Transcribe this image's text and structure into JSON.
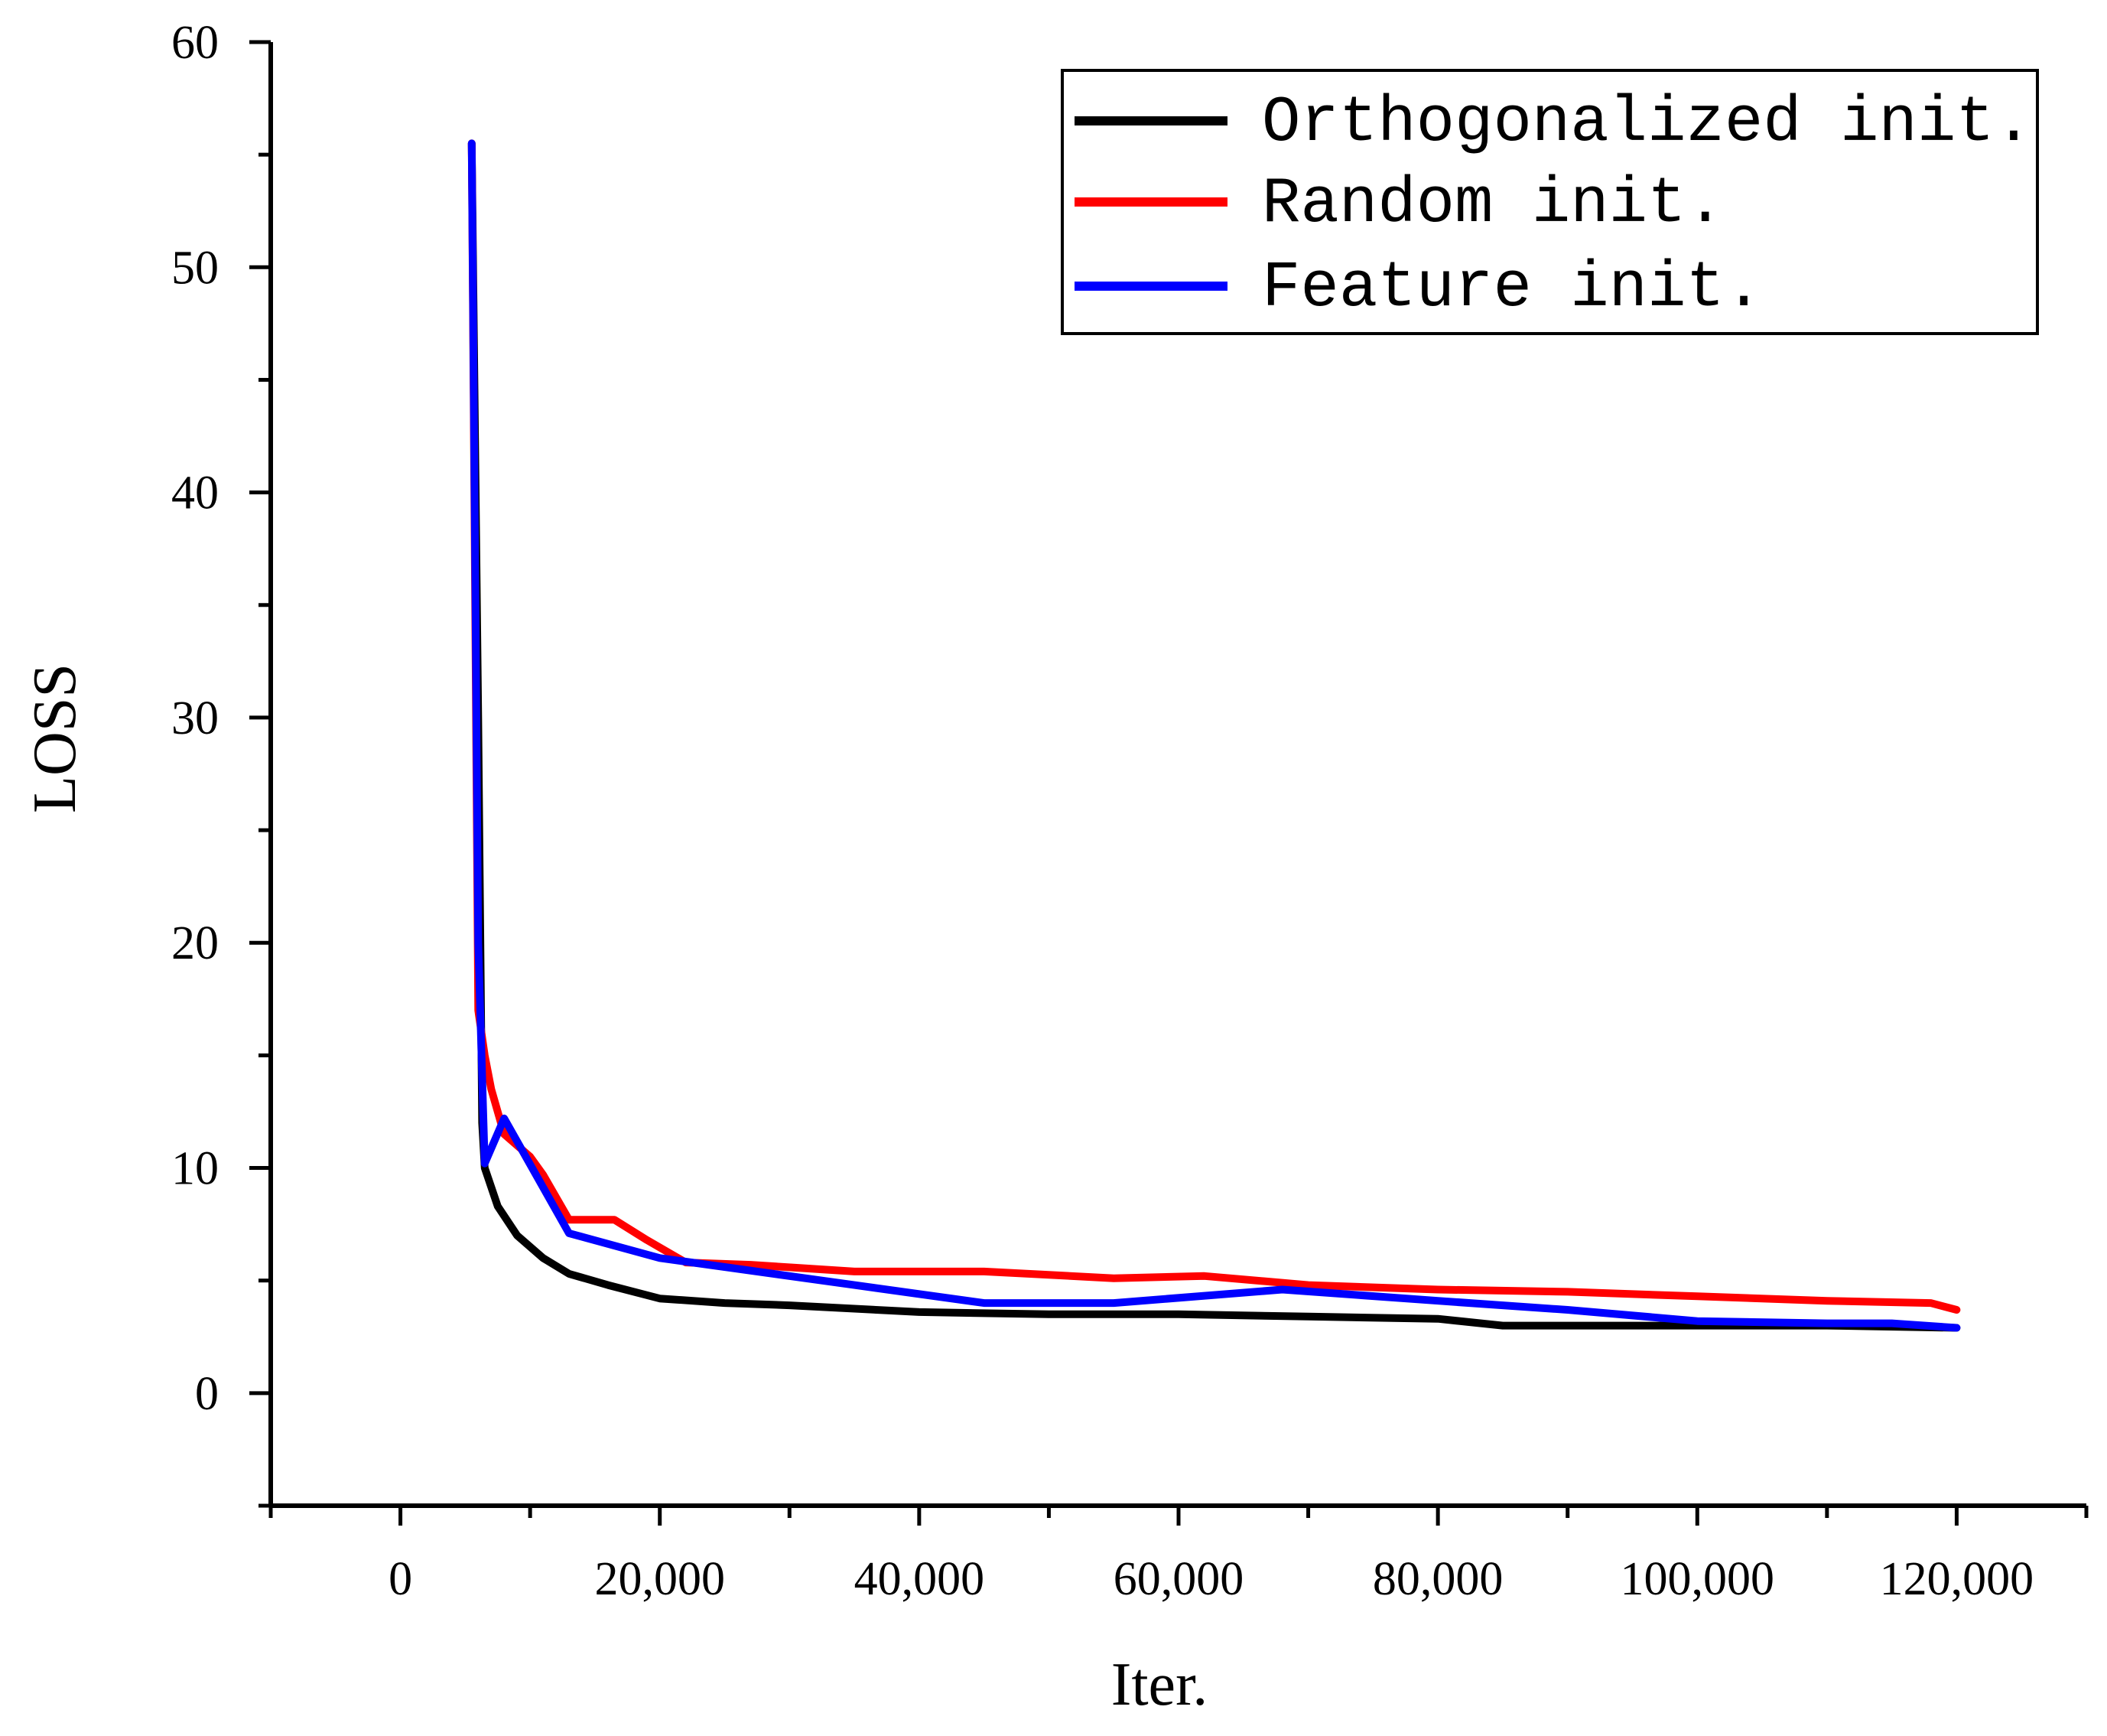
{
  "chart_data": {
    "type": "line",
    "title": "",
    "xlabel": "Iter.",
    "ylabel": "LOSS",
    "xlim": [
      -10000,
      130000
    ],
    "ylim": [
      -5,
      60
    ],
    "xticks": [
      0,
      20000,
      40000,
      60000,
      80000,
      100000,
      120000
    ],
    "xtick_labels": [
      "0",
      "20,000",
      "40,000",
      "60,000",
      "80,000",
      "100,000",
      "120,000"
    ],
    "yticks": [
      0,
      10,
      20,
      30,
      40,
      50,
      60
    ],
    "ytick_labels": [
      "0",
      "10",
      "20",
      "30",
      "40",
      "50",
      "60"
    ],
    "grid": false,
    "legend_position": "top-right",
    "series": [
      {
        "name": "Orthogonalized init.",
        "color": "#000000",
        "points": [
          [
            5500,
            55.5
          ],
          [
            6000,
            30
          ],
          [
            6300,
            12
          ],
          [
            6500,
            10
          ],
          [
            7500,
            8.3
          ],
          [
            9000,
            7
          ],
          [
            11000,
            6
          ],
          [
            13000,
            5.3
          ],
          [
            16000,
            4.8
          ],
          [
            20000,
            4.2
          ],
          [
            25000,
            4
          ],
          [
            30000,
            3.9
          ],
          [
            40000,
            3.6
          ],
          [
            50000,
            3.5
          ],
          [
            60000,
            3.5
          ],
          [
            70000,
            3.4
          ],
          [
            80000,
            3.3
          ],
          [
            85000,
            3
          ],
          [
            90000,
            3
          ],
          [
            100000,
            3
          ],
          [
            110000,
            3
          ],
          [
            120000,
            2.9
          ]
        ]
      },
      {
        "name": "Random init.",
        "color": "#ff0000",
        "points": [
          [
            5500,
            55.5
          ],
          [
            6000,
            17
          ],
          [
            6500,
            15
          ],
          [
            7000,
            13.5
          ],
          [
            8000,
            11.5
          ],
          [
            10000,
            10.5
          ],
          [
            11000,
            9.7
          ],
          [
            13000,
            7.7
          ],
          [
            16500,
            7.7
          ],
          [
            19000,
            6.8
          ],
          [
            22000,
            5.8
          ],
          [
            27000,
            5.7
          ],
          [
            35000,
            5.4
          ],
          [
            45000,
            5.4
          ],
          [
            55000,
            5.1
          ],
          [
            62000,
            5.2
          ],
          [
            70000,
            4.8
          ],
          [
            80000,
            4.6
          ],
          [
            90000,
            4.5
          ],
          [
            100000,
            4.3
          ],
          [
            110000,
            4.1
          ],
          [
            118000,
            4
          ],
          [
            120000,
            3.7
          ]
        ]
      },
      {
        "name": "Feature init.",
        "color": "#0000ff",
        "points": [
          [
            5500,
            55.5
          ],
          [
            6000,
            20
          ],
          [
            6500,
            10.2
          ],
          [
            8000,
            12.2
          ],
          [
            13000,
            7.1
          ],
          [
            20000,
            6
          ],
          [
            25000,
            5.6
          ],
          [
            35000,
            4.8
          ],
          [
            45000,
            4
          ],
          [
            55000,
            4
          ],
          [
            68000,
            4.6
          ],
          [
            80000,
            4.1
          ],
          [
            90000,
            3.7
          ],
          [
            100000,
            3.2
          ],
          [
            110000,
            3.1
          ],
          [
            115000,
            3.1
          ],
          [
            120000,
            2.9
          ]
        ]
      }
    ]
  }
}
